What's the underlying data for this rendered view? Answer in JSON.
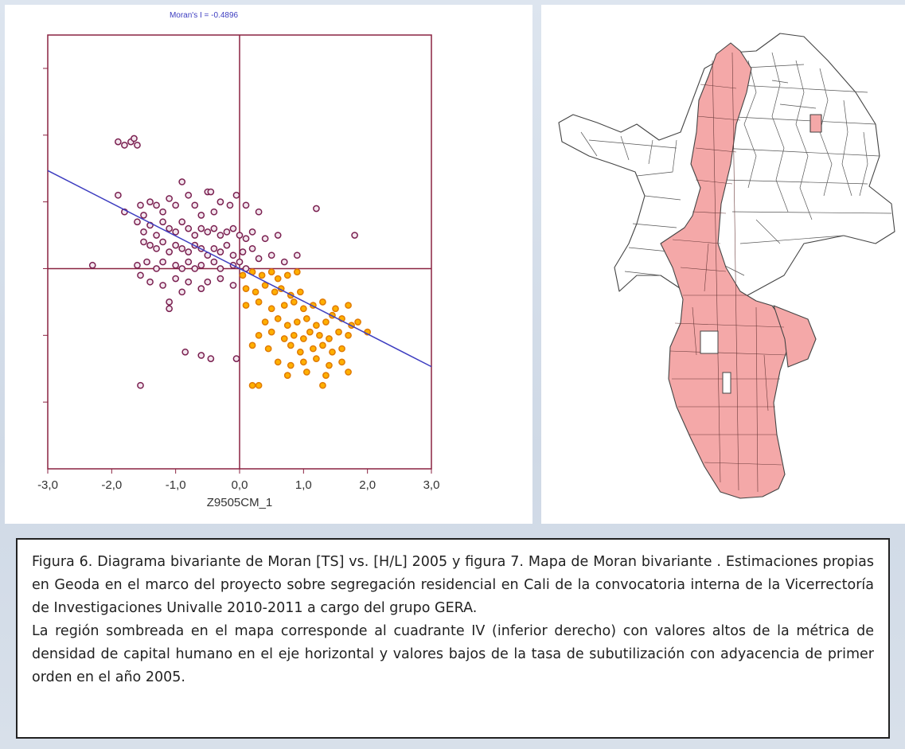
{
  "chart_data": {
    "type": "scatter",
    "title": "Moran's I = -0.4896",
    "xlabel": "Z9505CM_1",
    "ylabel": "",
    "xlim": [
      -3.0,
      3.0
    ],
    "ylim": [
      -3.0,
      3.5
    ],
    "x_tick_labels": [
      "-3,0",
      "-2,0",
      "-1,0",
      "0,0",
      "1,0",
      "2,0",
      "3,0"
    ],
    "x_ticks": [
      -3,
      -2,
      -1,
      0,
      1,
      2,
      3
    ],
    "regression_slope": -0.4896,
    "colors": {
      "other_points": "#7a2050",
      "quadrant_iv_points": "#e07a00",
      "quadrant_iv_fill": "#ffb000",
      "regression_line": "#3d3dc0",
      "axis_lines": "#8a2240"
    },
    "series": [
      {
        "group": "other-quadrants",
        "points": [
          [
            -1.9,
            1.9
          ],
          [
            -1.8,
            1.85
          ],
          [
            -1.7,
            1.9
          ],
          [
            -1.65,
            1.95
          ],
          [
            -1.6,
            1.85
          ],
          [
            -1.9,
            1.1
          ],
          [
            -1.8,
            0.85
          ],
          [
            -1.55,
            0.95
          ],
          [
            -1.5,
            0.8
          ],
          [
            -1.4,
            1.0
          ],
          [
            -1.3,
            0.95
          ],
          [
            -1.2,
            0.85
          ],
          [
            -1.1,
            1.05
          ],
          [
            -1.0,
            0.95
          ],
          [
            -0.9,
            1.3
          ],
          [
            -0.8,
            1.1
          ],
          [
            -0.7,
            0.95
          ],
          [
            -0.5,
            1.15
          ],
          [
            -0.45,
            1.15
          ],
          [
            -0.3,
            1.0
          ],
          [
            -0.15,
            0.95
          ],
          [
            -0.05,
            1.1
          ],
          [
            0.1,
            0.95
          ],
          [
            0.3,
            0.85
          ],
          [
            -0.6,
            0.8
          ],
          [
            -0.4,
            0.85
          ],
          [
            -1.6,
            0.7
          ],
          [
            -1.5,
            0.55
          ],
          [
            -1.4,
            0.65
          ],
          [
            -1.3,
            0.5
          ],
          [
            -1.2,
            0.7
          ],
          [
            -1.1,
            0.6
          ],
          [
            -1.0,
            0.55
          ],
          [
            -0.9,
            0.7
          ],
          [
            -0.8,
            0.6
          ],
          [
            -0.7,
            0.5
          ],
          [
            -0.6,
            0.6
          ],
          [
            -0.5,
            0.55
          ],
          [
            -0.4,
            0.6
          ],
          [
            -0.3,
            0.5
          ],
          [
            -0.2,
            0.55
          ],
          [
            -0.1,
            0.6
          ],
          [
            0.0,
            0.5
          ],
          [
            0.1,
            0.45
          ],
          [
            0.2,
            0.55
          ],
          [
            0.4,
            0.45
          ],
          [
            0.6,
            0.5
          ],
          [
            1.2,
            0.9
          ],
          [
            1.8,
            0.5
          ],
          [
            -1.5,
            0.4
          ],
          [
            -1.4,
            0.35
          ],
          [
            -1.3,
            0.3
          ],
          [
            -1.2,
            0.4
          ],
          [
            -1.1,
            0.25
          ],
          [
            -1.0,
            0.35
          ],
          [
            -0.9,
            0.3
          ],
          [
            -0.8,
            0.25
          ],
          [
            -0.7,
            0.35
          ],
          [
            -0.6,
            0.3
          ],
          [
            -0.5,
            0.2
          ],
          [
            -0.4,
            0.3
          ],
          [
            -0.3,
            0.25
          ],
          [
            -0.2,
            0.35
          ],
          [
            -0.1,
            0.2
          ],
          [
            0.05,
            0.25
          ],
          [
            0.2,
            0.3
          ],
          [
            0.3,
            0.15
          ],
          [
            0.5,
            0.2
          ],
          [
            0.7,
            0.1
          ],
          [
            0.9,
            0.2
          ],
          [
            -2.3,
            0.05
          ],
          [
            -1.6,
            0.05
          ],
          [
            -1.45,
            0.1
          ],
          [
            -1.3,
            0.0
          ],
          [
            -1.2,
            0.1
          ],
          [
            -1.0,
            0.05
          ],
          [
            -0.9,
            0.0
          ],
          [
            -0.8,
            0.1
          ],
          [
            -0.7,
            0.0
          ],
          [
            -0.6,
            0.05
          ],
          [
            -0.4,
            0.1
          ],
          [
            -0.3,
            0.0
          ],
          [
            -0.1,
            0.05
          ],
          [
            0.0,
            0.1
          ],
          [
            0.1,
            0.0
          ],
          [
            -1.55,
            -0.1
          ],
          [
            -1.4,
            -0.2
          ],
          [
            -1.2,
            -0.25
          ],
          [
            -1.0,
            -0.15
          ],
          [
            -0.9,
            -0.35
          ],
          [
            -0.8,
            -0.2
          ],
          [
            -0.6,
            -0.3
          ],
          [
            -0.5,
            -0.2
          ],
          [
            -0.3,
            -0.15
          ],
          [
            -0.1,
            -0.25
          ],
          [
            -1.1,
            -0.5
          ],
          [
            -1.1,
            -0.6
          ],
          [
            -0.85,
            -1.25
          ],
          [
            -0.6,
            -1.3
          ],
          [
            -0.45,
            -1.35
          ],
          [
            -0.05,
            -1.35
          ],
          [
            -1.55,
            -1.75
          ]
        ]
      },
      {
        "group": "quadrant-iv",
        "points": [
          [
            0.05,
            -0.1
          ],
          [
            0.2,
            -0.05
          ],
          [
            0.35,
            -0.1
          ],
          [
            0.5,
            -0.05
          ],
          [
            0.6,
            -0.15
          ],
          [
            0.75,
            -0.1
          ],
          [
            0.9,
            -0.05
          ],
          [
            0.1,
            -0.3
          ],
          [
            0.25,
            -0.35
          ],
          [
            0.4,
            -0.25
          ],
          [
            0.55,
            -0.35
          ],
          [
            0.65,
            -0.3
          ],
          [
            0.8,
            -0.4
          ],
          [
            0.95,
            -0.35
          ],
          [
            0.1,
            -0.55
          ],
          [
            0.3,
            -0.5
          ],
          [
            0.5,
            -0.6
          ],
          [
            0.7,
            -0.55
          ],
          [
            0.85,
            -0.5
          ],
          [
            1.0,
            -0.6
          ],
          [
            1.15,
            -0.55
          ],
          [
            1.3,
            -0.5
          ],
          [
            1.5,
            -0.6
          ],
          [
            1.7,
            -0.55
          ],
          [
            0.4,
            -0.8
          ],
          [
            0.6,
            -0.75
          ],
          [
            0.75,
            -0.85
          ],
          [
            0.9,
            -0.8
          ],
          [
            1.05,
            -0.75
          ],
          [
            1.2,
            -0.85
          ],
          [
            1.35,
            -0.8
          ],
          [
            1.45,
            -0.7
          ],
          [
            1.6,
            -0.75
          ],
          [
            1.75,
            -0.85
          ],
          [
            1.85,
            -0.8
          ],
          [
            0.3,
            -1.0
          ],
          [
            0.5,
            -0.95
          ],
          [
            0.7,
            -1.05
          ],
          [
            0.85,
            -1.0
          ],
          [
            1.0,
            -1.05
          ],
          [
            1.1,
            -0.95
          ],
          [
            1.25,
            -1.0
          ],
          [
            1.4,
            -1.05
          ],
          [
            1.55,
            -0.95
          ],
          [
            1.7,
            -1.0
          ],
          [
            2.0,
            -0.95
          ],
          [
            0.2,
            -1.15
          ],
          [
            0.45,
            -1.2
          ],
          [
            0.8,
            -1.15
          ],
          [
            0.95,
            -1.25
          ],
          [
            1.15,
            -1.2
          ],
          [
            1.3,
            -1.15
          ],
          [
            1.45,
            -1.25
          ],
          [
            1.6,
            -1.2
          ],
          [
            0.6,
            -1.4
          ],
          [
            0.8,
            -1.45
          ],
          [
            1.0,
            -1.4
          ],
          [
            1.2,
            -1.35
          ],
          [
            1.4,
            -1.45
          ],
          [
            1.6,
            -1.4
          ],
          [
            0.75,
            -1.6
          ],
          [
            1.05,
            -1.55
          ],
          [
            1.35,
            -1.6
          ],
          [
            1.7,
            -1.55
          ],
          [
            0.2,
            -1.75
          ],
          [
            0.3,
            -1.75
          ],
          [
            1.3,
            -1.75
          ]
        ]
      }
    ]
  },
  "caption": {
    "paragraph1": "Figura 6. Diagrama bivariante de Moran [TS] vs.  [H/L]  2005  y figura 7. Mapa de Moran bivariante . Estimaciones propias en Geoda en el marco del proyecto sobre segregación residencial en Cali de la convocatoria interna de la Vicerrectoría de Investigaciones Univalle 2010-2011 a cargo del grupo GERA.",
    "paragraph2": "La región sombreada en el mapa corresponde al cuadrante IV (inferior derecho) con valores altos de la métrica de densidad de capital humano en el eje horizontal y valores bajos de la tasa de subutilización con adyacencia de primer orden en el año 2005."
  },
  "map": {
    "highlight_color": "#f4a8a8",
    "outline_color": "#444444"
  }
}
